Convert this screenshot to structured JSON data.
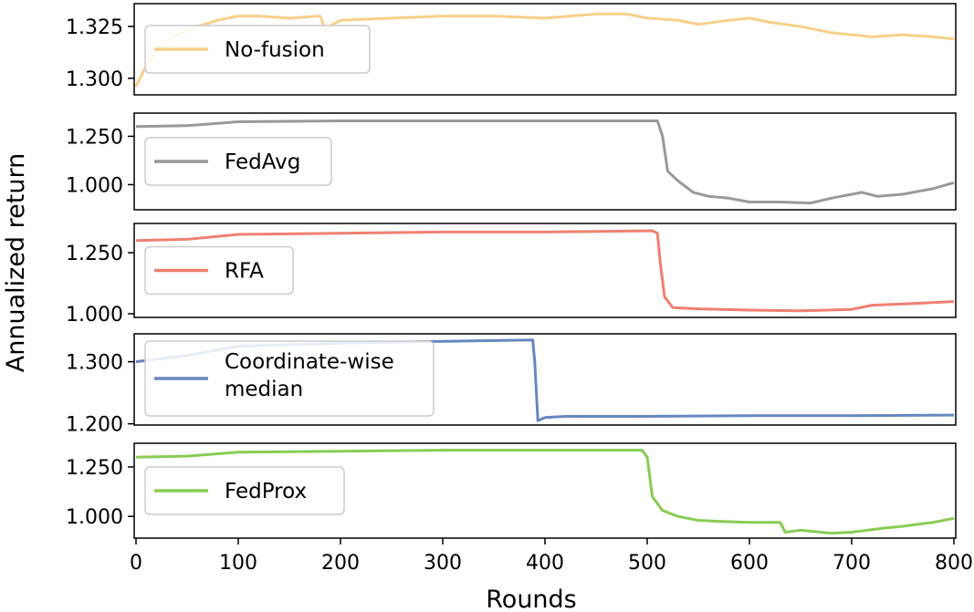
{
  "chart_data": {
    "type": "line",
    "xlabel": "Rounds",
    "ylabel": "Annualized return",
    "xlim": [
      0,
      800
    ],
    "x_ticks": [
      0,
      100,
      200,
      300,
      400,
      500,
      600,
      700,
      800
    ],
    "x_tick_labels": [
      "0",
      "100",
      "200",
      "300",
      "400",
      "500",
      "600",
      "700",
      "800"
    ],
    "grid": false,
    "legend_placement": "left (inside each panel)",
    "panels": [
      {
        "name": "No-fusion",
        "color": "#f7d08a",
        "ylim": [
          1.292,
          1.336
        ],
        "y_ticks": [
          1.3,
          1.325
        ],
        "y_tick_labels": [
          "1.300",
          "1.325"
        ],
        "points": [
          [
            0,
            1.296
          ],
          [
            10,
            1.306
          ],
          [
            20,
            1.313
          ],
          [
            40,
            1.321
          ],
          [
            60,
            1.325
          ],
          [
            80,
            1.328
          ],
          [
            100,
            1.33
          ],
          [
            120,
            1.33
          ],
          [
            150,
            1.329
          ],
          [
            180,
            1.33
          ],
          [
            185,
            1.324
          ],
          [
            200,
            1.328
          ],
          [
            250,
            1.329
          ],
          [
            300,
            1.33
          ],
          [
            350,
            1.33
          ],
          [
            400,
            1.329
          ],
          [
            450,
            1.331
          ],
          [
            480,
            1.331
          ],
          [
            500,
            1.329
          ],
          [
            530,
            1.328
          ],
          [
            550,
            1.326
          ],
          [
            580,
            1.328
          ],
          [
            600,
            1.329
          ],
          [
            620,
            1.327
          ],
          [
            650,
            1.325
          ],
          [
            680,
            1.322
          ],
          [
            700,
            1.321
          ],
          [
            720,
            1.32
          ],
          [
            750,
            1.321
          ],
          [
            780,
            1.32
          ],
          [
            800,
            1.319
          ]
        ]
      },
      {
        "name": "FedAvg",
        "color": "#999999",
        "ylim": [
          0.87,
          1.37
        ],
        "y_ticks": [
          1.0,
          1.25
        ],
        "y_tick_labels": [
          "1.000",
          "1.250"
        ],
        "points": [
          [
            0,
            1.3
          ],
          [
            50,
            1.305
          ],
          [
            100,
            1.325
          ],
          [
            200,
            1.33
          ],
          [
            300,
            1.33
          ],
          [
            400,
            1.33
          ],
          [
            510,
            1.33
          ],
          [
            515,
            1.25
          ],
          [
            520,
            1.07
          ],
          [
            530,
            1.02
          ],
          [
            545,
            0.96
          ],
          [
            560,
            0.94
          ],
          [
            580,
            0.93
          ],
          [
            600,
            0.91
          ],
          [
            630,
            0.91
          ],
          [
            660,
            0.905
          ],
          [
            680,
            0.93
          ],
          [
            700,
            0.95
          ],
          [
            710,
            0.96
          ],
          [
            725,
            0.94
          ],
          [
            750,
            0.95
          ],
          [
            780,
            0.98
          ],
          [
            800,
            1.01
          ]
        ]
      },
      {
        "name": "RFA",
        "color": "#ef8072",
        "ylim": [
          0.985,
          1.37
        ],
        "y_ticks": [
          1.0,
          1.25
        ],
        "y_tick_labels": [
          "1.000",
          "1.250"
        ],
        "points": [
          [
            0,
            1.3
          ],
          [
            50,
            1.305
          ],
          [
            100,
            1.325
          ],
          [
            200,
            1.33
          ],
          [
            300,
            1.335
          ],
          [
            400,
            1.335
          ],
          [
            505,
            1.34
          ],
          [
            510,
            1.33
          ],
          [
            513,
            1.2
          ],
          [
            517,
            1.07
          ],
          [
            525,
            1.025
          ],
          [
            550,
            1.02
          ],
          [
            600,
            1.015
          ],
          [
            650,
            1.012
          ],
          [
            700,
            1.018
          ],
          [
            720,
            1.035
          ],
          [
            750,
            1.04
          ],
          [
            800,
            1.05
          ]
        ]
      },
      {
        "name": "Coordinate-wise median",
        "label_lines": [
          "Coordinate-wise",
          " median"
        ],
        "color": "#6688c0",
        "ylim": [
          1.198,
          1.345
        ],
        "y_ticks": [
          1.2,
          1.3
        ],
        "y_tick_labels": [
          "1.200",
          "1.300"
        ],
        "points": [
          [
            0,
            1.3
          ],
          [
            50,
            1.31
          ],
          [
            100,
            1.325
          ],
          [
            200,
            1.33
          ],
          [
            300,
            1.333
          ],
          [
            388,
            1.335
          ],
          [
            390,
            1.3
          ],
          [
            393,
            1.205
          ],
          [
            400,
            1.21
          ],
          [
            420,
            1.212
          ],
          [
            500,
            1.212
          ],
          [
            600,
            1.213
          ],
          [
            700,
            1.213
          ],
          [
            800,
            1.214
          ]
        ]
      },
      {
        "name": "FedProx",
        "color": "#88cc55",
        "ylim": [
          0.89,
          1.37
        ],
        "y_ticks": [
          1.0,
          1.25
        ],
        "y_tick_labels": [
          "1.000",
          "1.250"
        ],
        "points": [
          [
            0,
            1.3
          ],
          [
            50,
            1.305
          ],
          [
            100,
            1.325
          ],
          [
            200,
            1.33
          ],
          [
            300,
            1.335
          ],
          [
            400,
            1.335
          ],
          [
            495,
            1.335
          ],
          [
            500,
            1.3
          ],
          [
            505,
            1.1
          ],
          [
            515,
            1.03
          ],
          [
            530,
            1.0
          ],
          [
            550,
            0.98
          ],
          [
            570,
            0.975
          ],
          [
            600,
            0.97
          ],
          [
            630,
            0.97
          ],
          [
            635,
            0.92
          ],
          [
            650,
            0.93
          ],
          [
            680,
            0.915
          ],
          [
            700,
            0.92
          ],
          [
            730,
            0.94
          ],
          [
            750,
            0.95
          ],
          [
            780,
            0.97
          ],
          [
            800,
            0.99
          ]
        ]
      }
    ]
  }
}
